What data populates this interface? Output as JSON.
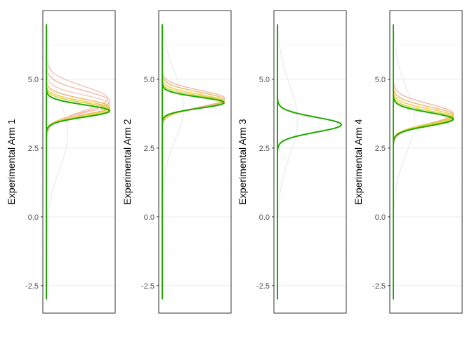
{
  "chart_data": [
    {
      "type": "line",
      "ylabel": "Experimental Arm 1",
      "ylim": [
        -3.5,
        7.5
      ],
      "y_ticks": [
        "-2.5",
        "0.0",
        "2.5",
        "5.0"
      ],
      "y_tick_values": [
        -2.5,
        0.0,
        2.5,
        5.0
      ],
      "baseline": {
        "ymin": -3.0,
        "ymax": 7.0
      },
      "grid": true,
      "densities": [
        {
          "mean": 3.0,
          "sd": 1.3,
          "peak": 0.32,
          "color": "#ededed"
        },
        {
          "mean": 4.3,
          "sd": 0.45,
          "peak": 0.92,
          "color": "#f2c4b8"
        },
        {
          "mean": 4.2,
          "sd": 0.38,
          "peak": 0.95,
          "color": "#eebaa6"
        },
        {
          "mean": 4.1,
          "sd": 0.32,
          "peak": 0.95,
          "color": "#f4c8ba"
        },
        {
          "mean": 4.0,
          "sd": 0.28,
          "peak": 0.95,
          "color": "#e8b86a"
        },
        {
          "mean": 3.95,
          "sd": 0.25,
          "peak": 0.95,
          "color": "#f1c84a"
        },
        {
          "mean": 3.9,
          "sd": 0.24,
          "peak": 0.96,
          "color": "#c8d62c"
        },
        {
          "mean": 3.85,
          "sd": 0.22,
          "peak": 0.95,
          "color": "#1fa800"
        }
      ]
    },
    {
      "type": "line",
      "ylabel": "Experimental Arm 2",
      "ylim": [
        -3.5,
        7.5
      ],
      "y_ticks": [
        "-2.5",
        "0.0",
        "2.5",
        "5.0"
      ],
      "y_tick_values": [
        -2.5,
        0.0,
        2.5,
        5.0
      ],
      "baseline": {
        "ymin": -3.0,
        "ymax": 7.0
      },
      "grid": true,
      "densities": [
        {
          "mean": 4.0,
          "sd": 1.2,
          "peak": 0.32,
          "color": "#ededed"
        },
        {
          "mean": 4.3,
          "sd": 0.3,
          "peak": 0.94,
          "color": "#eebaa6"
        },
        {
          "mean": 4.25,
          "sd": 0.28,
          "peak": 0.93,
          "color": "#e8b86a"
        },
        {
          "mean": 4.2,
          "sd": 0.25,
          "peak": 0.93,
          "color": "#f1c84a"
        },
        {
          "mean": 4.18,
          "sd": 0.22,
          "peak": 0.93,
          "color": "#c8d62c"
        },
        {
          "mean": 4.15,
          "sd": 0.2,
          "peak": 0.93,
          "color": "#1fa800"
        }
      ]
    },
    {
      "type": "line",
      "ylabel": "Experimental Arm 3",
      "ylim": [
        -3.5,
        7.5
      ],
      "y_ticks": [
        "-2.5",
        "0.0",
        "2.5",
        "5.0"
      ],
      "y_tick_values": [
        -2.5,
        0.0,
        2.5,
        5.0
      ],
      "baseline": {
        "ymin": -3.0,
        "ymax": 7.0
      },
      "grid": true,
      "densities": [
        {
          "mean": 3.5,
          "sd": 1.3,
          "peak": 0.3,
          "color": "#ededed"
        },
        {
          "mean": 3.35,
          "sd": 0.27,
          "peak": 0.96,
          "color": "#1fa800"
        }
      ]
    },
    {
      "type": "line",
      "ylabel": "Experimental Arm 4",
      "ylim": [
        -3.5,
        7.5
      ],
      "y_ticks": [
        "-2.5",
        "0.0",
        "2.5",
        "5.0"
      ],
      "y_tick_values": [
        -2.5,
        0.0,
        2.5,
        5.0
      ],
      "baseline": {
        "ymin": -3.0,
        "ymax": 7.0
      },
      "grid": true,
      "densities": [
        {
          "mean": 3.5,
          "sd": 1.2,
          "peak": 0.32,
          "color": "#ededed"
        },
        {
          "mean": 3.75,
          "sd": 0.35,
          "peak": 0.9,
          "color": "#eebaa6"
        },
        {
          "mean": 3.7,
          "sd": 0.3,
          "peak": 0.9,
          "color": "#e8b86a"
        },
        {
          "mean": 3.65,
          "sd": 0.27,
          "peak": 0.9,
          "color": "#f1c84a"
        },
        {
          "mean": 3.6,
          "sd": 0.25,
          "peak": 0.9,
          "color": "#c8d62c"
        },
        {
          "mean": 3.55,
          "sd": 0.24,
          "peak": 0.9,
          "color": "#1fa800"
        }
      ]
    }
  ]
}
